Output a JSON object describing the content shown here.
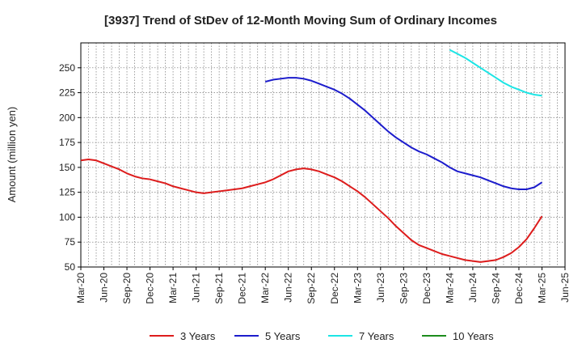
{
  "chart_data": {
    "type": "line",
    "title": "[3937]  Trend of StDev of 12-Month Moving Sum of Ordinary Incomes",
    "xlabel": "",
    "ylabel": "Amount (million yen)",
    "ylim": [
      50,
      275
    ],
    "yticks": [
      50,
      75,
      100,
      125,
      150,
      175,
      200,
      225,
      250
    ],
    "xlim": [
      "2020-03",
      "2025-06"
    ],
    "xticks": [
      "Mar-20",
      "Jun-20",
      "Sep-20",
      "Dec-20",
      "Mar-21",
      "Jun-21",
      "Sep-21",
      "Dec-21",
      "Mar-22",
      "Jun-22",
      "Sep-22",
      "Dec-22",
      "Mar-23",
      "Jun-23",
      "Sep-23",
      "Dec-23",
      "Mar-24",
      "Jun-24",
      "Sep-24",
      "Dec-24",
      "Mar-25",
      "Jun-25"
    ],
    "grid": true,
    "legend_position": "bottom",
    "series": [
      {
        "name": "3 Years",
        "color": "#dd1c1c",
        "points": [
          [
            "2020-03",
            157
          ],
          [
            "2020-04",
            158
          ],
          [
            "2020-05",
            157
          ],
          [
            "2020-06",
            154
          ],
          [
            "2020-07",
            151
          ],
          [
            "2020-08",
            148
          ],
          [
            "2020-09",
            144
          ],
          [
            "2020-10",
            141
          ],
          [
            "2020-11",
            139
          ],
          [
            "2020-12",
            138
          ],
          [
            "2021-01",
            136
          ],
          [
            "2021-02",
            134
          ],
          [
            "2021-03",
            131
          ],
          [
            "2021-04",
            129
          ],
          [
            "2021-05",
            127
          ],
          [
            "2021-06",
            125
          ],
          [
            "2021-07",
            124
          ],
          [
            "2021-08",
            125
          ],
          [
            "2021-09",
            126
          ],
          [
            "2021-10",
            127
          ],
          [
            "2021-11",
            128
          ],
          [
            "2021-12",
            129
          ],
          [
            "2022-01",
            131
          ],
          [
            "2022-02",
            133
          ],
          [
            "2022-03",
            135
          ],
          [
            "2022-04",
            138
          ],
          [
            "2022-05",
            142
          ],
          [
            "2022-06",
            146
          ],
          [
            "2022-07",
            148
          ],
          [
            "2022-08",
            149
          ],
          [
            "2022-09",
            148
          ],
          [
            "2022-10",
            146
          ],
          [
            "2022-11",
            143
          ],
          [
            "2022-12",
            140
          ],
          [
            "2023-01",
            136
          ],
          [
            "2023-02",
            131
          ],
          [
            "2023-03",
            126
          ],
          [
            "2023-04",
            120
          ],
          [
            "2023-05",
            113
          ],
          [
            "2023-06",
            106
          ],
          [
            "2023-07",
            99
          ],
          [
            "2023-08",
            91
          ],
          [
            "2023-09",
            84
          ],
          [
            "2023-10",
            77
          ],
          [
            "2023-11",
            72
          ],
          [
            "2023-12",
            69
          ],
          [
            "2024-01",
            66
          ],
          [
            "2024-02",
            63
          ],
          [
            "2024-03",
            61
          ],
          [
            "2024-04",
            59
          ],
          [
            "2024-05",
            57
          ],
          [
            "2024-06",
            56
          ],
          [
            "2024-07",
            55
          ],
          [
            "2024-08",
            56
          ],
          [
            "2024-09",
            57
          ],
          [
            "2024-10",
            60
          ],
          [
            "2024-11",
            64
          ],
          [
            "2024-12",
            70
          ],
          [
            "2025-01",
            78
          ],
          [
            "2025-02",
            89
          ],
          [
            "2025-03",
            101
          ]
        ]
      },
      {
        "name": "5 Years",
        "color": "#1c1ccc",
        "points": [
          [
            "2022-03",
            236
          ],
          [
            "2022-04",
            238
          ],
          [
            "2022-05",
            239
          ],
          [
            "2022-06",
            240
          ],
          [
            "2022-07",
            240
          ],
          [
            "2022-08",
            239
          ],
          [
            "2022-09",
            237
          ],
          [
            "2022-10",
            234
          ],
          [
            "2022-11",
            231
          ],
          [
            "2022-12",
            228
          ],
          [
            "2023-01",
            224
          ],
          [
            "2023-02",
            219
          ],
          [
            "2023-03",
            213
          ],
          [
            "2023-04",
            207
          ],
          [
            "2023-05",
            200
          ],
          [
            "2023-06",
            193
          ],
          [
            "2023-07",
            186
          ],
          [
            "2023-08",
            180
          ],
          [
            "2023-09",
            175
          ],
          [
            "2023-10",
            170
          ],
          [
            "2023-11",
            166
          ],
          [
            "2023-12",
            163
          ],
          [
            "2024-01",
            159
          ],
          [
            "2024-02",
            155
          ],
          [
            "2024-03",
            150
          ],
          [
            "2024-04",
            146
          ],
          [
            "2024-05",
            144
          ],
          [
            "2024-06",
            142
          ],
          [
            "2024-07",
            140
          ],
          [
            "2024-08",
            137
          ],
          [
            "2024-09",
            134
          ],
          [
            "2024-10",
            131
          ],
          [
            "2024-11",
            129
          ],
          [
            "2024-12",
            128
          ],
          [
            "2025-01",
            128
          ],
          [
            "2025-02",
            130
          ],
          [
            "2025-03",
            135
          ]
        ]
      },
      {
        "name": "7 Years",
        "color": "#1ce5e5",
        "points": [
          [
            "2024-03",
            268
          ],
          [
            "2024-04",
            264
          ],
          [
            "2024-05",
            260
          ],
          [
            "2024-06",
            255
          ],
          [
            "2024-07",
            250
          ],
          [
            "2024-08",
            245
          ],
          [
            "2024-09",
            240
          ],
          [
            "2024-10",
            235
          ],
          [
            "2024-11",
            231
          ],
          [
            "2024-12",
            228
          ],
          [
            "2025-01",
            225
          ],
          [
            "2025-02",
            223
          ],
          [
            "2025-03",
            222
          ]
        ]
      },
      {
        "name": "10 Years",
        "color": "#1c8c1c",
        "points": []
      }
    ]
  }
}
